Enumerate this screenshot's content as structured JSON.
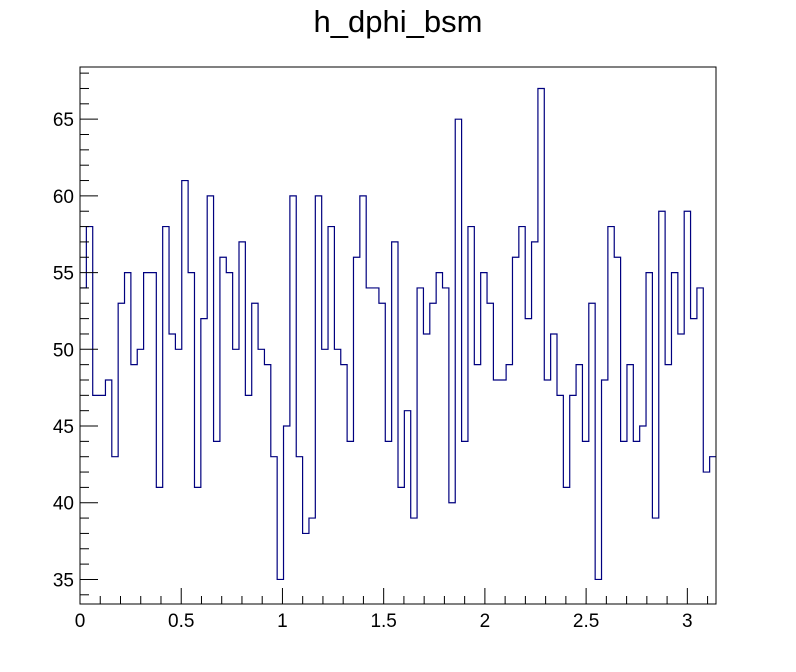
{
  "chart_data": {
    "type": "histogram",
    "title": "h_dphi_bsm",
    "xlabel": "",
    "ylabel": "",
    "xlim": [
      0,
      3.14159
    ],
    "ylim": [
      33.4,
      68.4
    ],
    "x_ticks": [
      "0",
      "0.5",
      "1",
      "1.5",
      "2",
      "2.5",
      "3"
    ],
    "y_ticks": [
      "35",
      "40",
      "45",
      "50",
      "55",
      "60",
      "65"
    ],
    "line_color": "#00007f",
    "bins": 100,
    "values": [
      54,
      58,
      47,
      47,
      48,
      43,
      53,
      55,
      49,
      50,
      55,
      55,
      41,
      58,
      51,
      50,
      61,
      55,
      41,
      52,
      60,
      44,
      56,
      55,
      50,
      57,
      47,
      53,
      50,
      49,
      43,
      35,
      45,
      60,
      43,
      38,
      39,
      60,
      50,
      58,
      50,
      49,
      44,
      56,
      60,
      54,
      54,
      53,
      44,
      57,
      41,
      46,
      39,
      54,
      51,
      53,
      55,
      54,
      40,
      65,
      44,
      58,
      49,
      55,
      53,
      48,
      48,
      49,
      56,
      58,
      52,
      57,
      67,
      48,
      51,
      47,
      41,
      47,
      49,
      44,
      53,
      35,
      48,
      58,
      56,
      44,
      49,
      44,
      45,
      55,
      39,
      59,
      49,
      55,
      51,
      59,
      52,
      54,
      42,
      43
    ]
  }
}
